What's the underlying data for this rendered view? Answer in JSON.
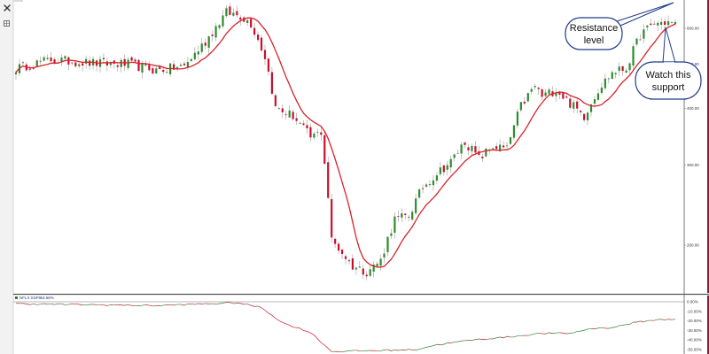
{
  "chart_data": {
    "type": "candlestick",
    "main_panel": {
      "y_scale": "log",
      "ylim": [
        140,
        1000
      ],
      "y_ticks": [
        {
          "value": 200,
          "label": "200.00"
        },
        {
          "value": 300,
          "label": "300.00"
        },
        {
          "value": 400,
          "label": "400.00"
        },
        {
          "value": 500,
          "label": "500.00"
        },
        {
          "value": 600,
          "label": "600.00"
        }
      ],
      "moving_average": {
        "color": "#d8232a"
      },
      "up_color": "#2e8b2e",
      "down_color": "#c8102e",
      "close_anchors": [
        {
          "i": 0,
          "close": 490
        },
        {
          "i": 10,
          "close": 512
        },
        {
          "i": 22,
          "close": 503
        },
        {
          "i": 32,
          "close": 500
        },
        {
          "i": 40,
          "close": 485
        },
        {
          "i": 48,
          "close": 495
        },
        {
          "i": 54,
          "close": 560
        },
        {
          "i": 60,
          "close": 650
        },
        {
          "i": 64,
          "close": 640
        },
        {
          "i": 67,
          "close": 615
        },
        {
          "i": 71,
          "close": 520
        },
        {
          "i": 74,
          "close": 400
        },
        {
          "i": 79,
          "close": 385
        },
        {
          "i": 84,
          "close": 345
        },
        {
          "i": 87,
          "close": 355
        },
        {
          "i": 90,
          "close": 205
        },
        {
          "i": 96,
          "close": 180
        },
        {
          "i": 100,
          "close": 175
        },
        {
          "i": 104,
          "close": 185
        },
        {
          "i": 108,
          "close": 228
        },
        {
          "i": 112,
          "close": 232
        },
        {
          "i": 116,
          "close": 268
        },
        {
          "i": 120,
          "close": 288
        },
        {
          "i": 124,
          "close": 305
        },
        {
          "i": 128,
          "close": 338
        },
        {
          "i": 132,
          "close": 310
        },
        {
          "i": 136,
          "close": 330
        },
        {
          "i": 140,
          "close": 325
        },
        {
          "i": 144,
          "close": 405
        },
        {
          "i": 148,
          "close": 448
        },
        {
          "i": 150,
          "close": 425
        },
        {
          "i": 154,
          "close": 440
        },
        {
          "i": 158,
          "close": 410
        },
        {
          "i": 162,
          "close": 385
        },
        {
          "i": 166,
          "close": 440
        },
        {
          "i": 170,
          "close": 480
        },
        {
          "i": 174,
          "close": 490
        },
        {
          "i": 178,
          "close": 580
        },
        {
          "i": 182,
          "close": 615
        },
        {
          "i": 186,
          "close": 620
        },
        {
          "i": 188,
          "close": 610
        }
      ]
    },
    "sub_panel": {
      "series": [
        {
          "name": "NFLX:SSPX",
          "last_label": "-18.68%"
        }
      ],
      "y_ticks": [
        {
          "value": 0,
          "label": "0.00%"
        },
        {
          "value": -10,
          "label": "-10.00%"
        },
        {
          "value": -20,
          "label": "-20.00%"
        },
        {
          "value": -30,
          "label": "-30.00%"
        },
        {
          "value": -40,
          "label": "-40.00%"
        },
        {
          "value": -50,
          "label": "-50.00%"
        }
      ],
      "ylim": [
        -56,
        3
      ],
      "line_color": "#2e7d32",
      "down_color": "#c8102e",
      "anchors": [
        {
          "i": 0,
          "v": -2
        },
        {
          "i": 20,
          "v": -3
        },
        {
          "i": 40,
          "v": -4
        },
        {
          "i": 55,
          "v": -2
        },
        {
          "i": 63,
          "v": -1
        },
        {
          "i": 70,
          "v": -6
        },
        {
          "i": 76,
          "v": -22
        },
        {
          "i": 84,
          "v": -32
        },
        {
          "i": 90,
          "v": -52
        },
        {
          "i": 114,
          "v": -50
        },
        {
          "i": 120,
          "v": -45
        },
        {
          "i": 130,
          "v": -40
        },
        {
          "i": 140,
          "v": -37
        },
        {
          "i": 150,
          "v": -33
        },
        {
          "i": 158,
          "v": -33
        },
        {
          "i": 164,
          "v": -28
        },
        {
          "i": 170,
          "v": -27
        },
        {
          "i": 176,
          "v": -22
        },
        {
          "i": 182,
          "v": -19
        },
        {
          "i": 188,
          "v": -18
        }
      ]
    },
    "annotations": [
      {
        "text_lines": [
          "Resistance",
          "level"
        ]
      },
      {
        "text_lines": [
          "Watch this",
          "support"
        ]
      }
    ]
  },
  "toolbar": {
    "close_icon": "close-icon",
    "expand_icon": "expand-icon"
  }
}
